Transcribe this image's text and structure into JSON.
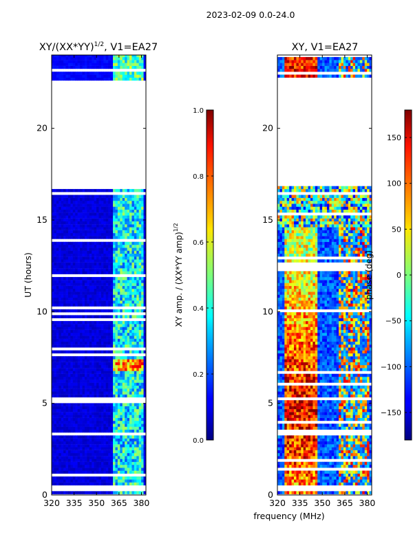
{
  "figure": {
    "suptitle": "2023-02-09 0.0-24.0",
    "xlabel": "frequency (MHz)",
    "ylabel": "UT (hours)"
  },
  "chart_data": [
    {
      "type": "heatmap",
      "title": "XY/(XX*YY)",
      "title_exponent": "1/2",
      "title_suffix": ", V1=EA27",
      "xlabel": "frequency (MHz)",
      "ylabel": "UT (hours)",
      "xlim": [
        320,
        383
      ],
      "ylim": [
        0,
        24
      ],
      "xticks": [
        320,
        335,
        350,
        365,
        380
      ],
      "yticks": [
        0,
        5,
        10,
        15,
        20
      ],
      "data_gap_hours": [
        16.7,
        22.6
      ],
      "colorbar": {
        "label": "XY amp. / (XX*YY amp)",
        "label_exponent": "1/2",
        "range": [
          0.0,
          1.0
        ],
        "ticks": [
          "0.0",
          "0.2",
          "0.4",
          "0.6",
          "0.8",
          "1.0"
        ],
        "colormap": "jet"
      }
    },
    {
      "type": "heatmap",
      "title": "XY, V1=EA27",
      "xlabel": "frequency (MHz)",
      "xlim": [
        320,
        383
      ],
      "ylim": [
        0,
        24
      ],
      "xticks": [
        320,
        335,
        350,
        365,
        380
      ],
      "yticks": [
        0,
        5,
        10,
        15,
        20
      ],
      "data_gap_hours": [
        16.7,
        22.6
      ],
      "colorbar": {
        "label": "phase (deg)",
        "range": [
          -180,
          180
        ],
        "ticks": [
          "−150",
          "−100",
          "−50",
          "0",
          "50",
          "100",
          "150"
        ],
        "colormap": "jet"
      }
    }
  ]
}
